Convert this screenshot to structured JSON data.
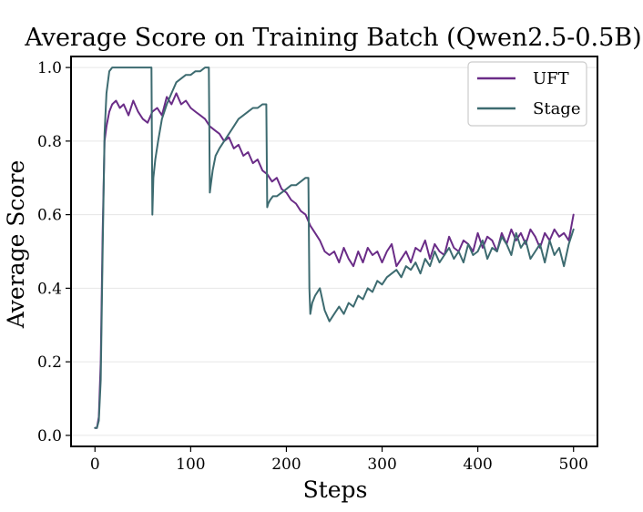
{
  "chart_data": {
    "type": "line",
    "title": "Average Score on Training Batch (Qwen2.5-0.5B)",
    "xlabel": "Steps",
    "ylabel": "Average Score",
    "xlim": [
      -25,
      525
    ],
    "ylim": [
      -0.03,
      1.03
    ],
    "xticks": [
      0,
      100,
      200,
      300,
      400,
      500
    ],
    "xtick_labels": [
      "0",
      "100",
      "200",
      "300",
      "400",
      "500"
    ],
    "yticks": [
      0.0,
      0.2,
      0.4,
      0.6,
      0.8,
      1.0
    ],
    "ytick_labels": [
      "0.0",
      "0.2",
      "0.4",
      "0.6",
      "0.8",
      "1.0"
    ],
    "grid": "horizontal",
    "legend_position": "top-right",
    "series": [
      {
        "name": "UFT",
        "color": "#6a2c87",
        "x": [
          0,
          2,
          4,
          6,
          8,
          10,
          12,
          15,
          18,
          22,
          26,
          30,
          35,
          40,
          45,
          50,
          55,
          60,
          65,
          70,
          75,
          80,
          85,
          90,
          95,
          100,
          105,
          110,
          115,
          120,
          125,
          130,
          135,
          140,
          145,
          150,
          155,
          160,
          165,
          170,
          175,
          180,
          185,
          190,
          195,
          200,
          205,
          210,
          215,
          220,
          225,
          230,
          235,
          240,
          245,
          250,
          255,
          260,
          265,
          270,
          275,
          280,
          285,
          290,
          295,
          300,
          305,
          310,
          315,
          320,
          325,
          330,
          335,
          340,
          345,
          350,
          355,
          360,
          365,
          370,
          375,
          380,
          385,
          390,
          395,
          400,
          405,
          410,
          415,
          420,
          425,
          430,
          435,
          440,
          445,
          450,
          455,
          460,
          465,
          470,
          475,
          480,
          485,
          490,
          495,
          500
        ],
        "values": [
          0.02,
          0.02,
          0.05,
          0.2,
          0.55,
          0.8,
          0.84,
          0.88,
          0.9,
          0.91,
          0.89,
          0.9,
          0.87,
          0.91,
          0.88,
          0.86,
          0.85,
          0.88,
          0.89,
          0.87,
          0.92,
          0.9,
          0.93,
          0.9,
          0.91,
          0.89,
          0.88,
          0.87,
          0.86,
          0.84,
          0.83,
          0.82,
          0.8,
          0.81,
          0.78,
          0.79,
          0.76,
          0.77,
          0.74,
          0.75,
          0.72,
          0.71,
          0.69,
          0.7,
          0.67,
          0.66,
          0.64,
          0.63,
          0.61,
          0.6,
          0.57,
          0.55,
          0.53,
          0.5,
          0.49,
          0.5,
          0.47,
          0.51,
          0.48,
          0.46,
          0.5,
          0.47,
          0.51,
          0.49,
          0.5,
          0.47,
          0.5,
          0.52,
          0.46,
          0.48,
          0.5,
          0.47,
          0.51,
          0.5,
          0.53,
          0.48,
          0.52,
          0.5,
          0.49,
          0.54,
          0.51,
          0.5,
          0.53,
          0.52,
          0.5,
          0.55,
          0.51,
          0.54,
          0.53,
          0.5,
          0.55,
          0.52,
          0.56,
          0.53,
          0.55,
          0.52,
          0.56,
          0.54,
          0.51,
          0.55,
          0.53,
          0.56,
          0.54,
          0.55,
          0.53,
          0.6
        ]
      },
      {
        "name": "Stage",
        "color": "#3d6b70",
        "x": [
          0,
          2,
          4,
          6,
          8,
          10,
          12,
          15,
          18,
          22,
          26,
          30,
          35,
          40,
          45,
          50,
          55,
          59,
          60,
          61,
          63,
          66,
          70,
          75,
          80,
          85,
          90,
          95,
          100,
          105,
          110,
          115,
          119,
          120,
          121,
          123,
          126,
          130,
          135,
          140,
          145,
          150,
          155,
          160,
          165,
          170,
          175,
          179,
          180,
          181,
          183,
          186,
          190,
          195,
          200,
          205,
          210,
          215,
          220,
          223,
          224,
          225,
          227,
          230,
          235,
          240,
          245,
          250,
          255,
          260,
          265,
          270,
          275,
          280,
          285,
          290,
          295,
          300,
          305,
          310,
          315,
          320,
          325,
          330,
          335,
          340,
          345,
          350,
          355,
          360,
          365,
          370,
          375,
          380,
          385,
          390,
          395,
          400,
          405,
          410,
          415,
          420,
          425,
          430,
          435,
          440,
          445,
          450,
          455,
          460,
          465,
          470,
          475,
          480,
          485,
          490,
          495,
          500
        ],
        "values": [
          0.02,
          0.02,
          0.04,
          0.15,
          0.5,
          0.82,
          0.93,
          0.99,
          1.0,
          1.0,
          1.0,
          1.0,
          1.0,
          1.0,
          1.0,
          1.0,
          1.0,
          1.0,
          0.6,
          0.7,
          0.75,
          0.8,
          0.86,
          0.9,
          0.93,
          0.96,
          0.97,
          0.98,
          0.98,
          0.99,
          0.99,
          1.0,
          1.0,
          0.66,
          0.68,
          0.72,
          0.76,
          0.78,
          0.8,
          0.82,
          0.84,
          0.86,
          0.87,
          0.88,
          0.89,
          0.89,
          0.9,
          0.9,
          0.62,
          0.63,
          0.64,
          0.65,
          0.65,
          0.66,
          0.67,
          0.68,
          0.68,
          0.69,
          0.7,
          0.7,
          0.4,
          0.33,
          0.36,
          0.38,
          0.4,
          0.34,
          0.31,
          0.33,
          0.35,
          0.33,
          0.36,
          0.35,
          0.38,
          0.37,
          0.4,
          0.39,
          0.42,
          0.41,
          0.43,
          0.44,
          0.45,
          0.43,
          0.46,
          0.45,
          0.47,
          0.44,
          0.48,
          0.46,
          0.5,
          0.47,
          0.49,
          0.51,
          0.48,
          0.5,
          0.47,
          0.52,
          0.49,
          0.5,
          0.53,
          0.48,
          0.51,
          0.5,
          0.54,
          0.52,
          0.49,
          0.55,
          0.51,
          0.53,
          0.48,
          0.5,
          0.52,
          0.47,
          0.53,
          0.49,
          0.51,
          0.46,
          0.52,
          0.56
        ]
      }
    ]
  }
}
